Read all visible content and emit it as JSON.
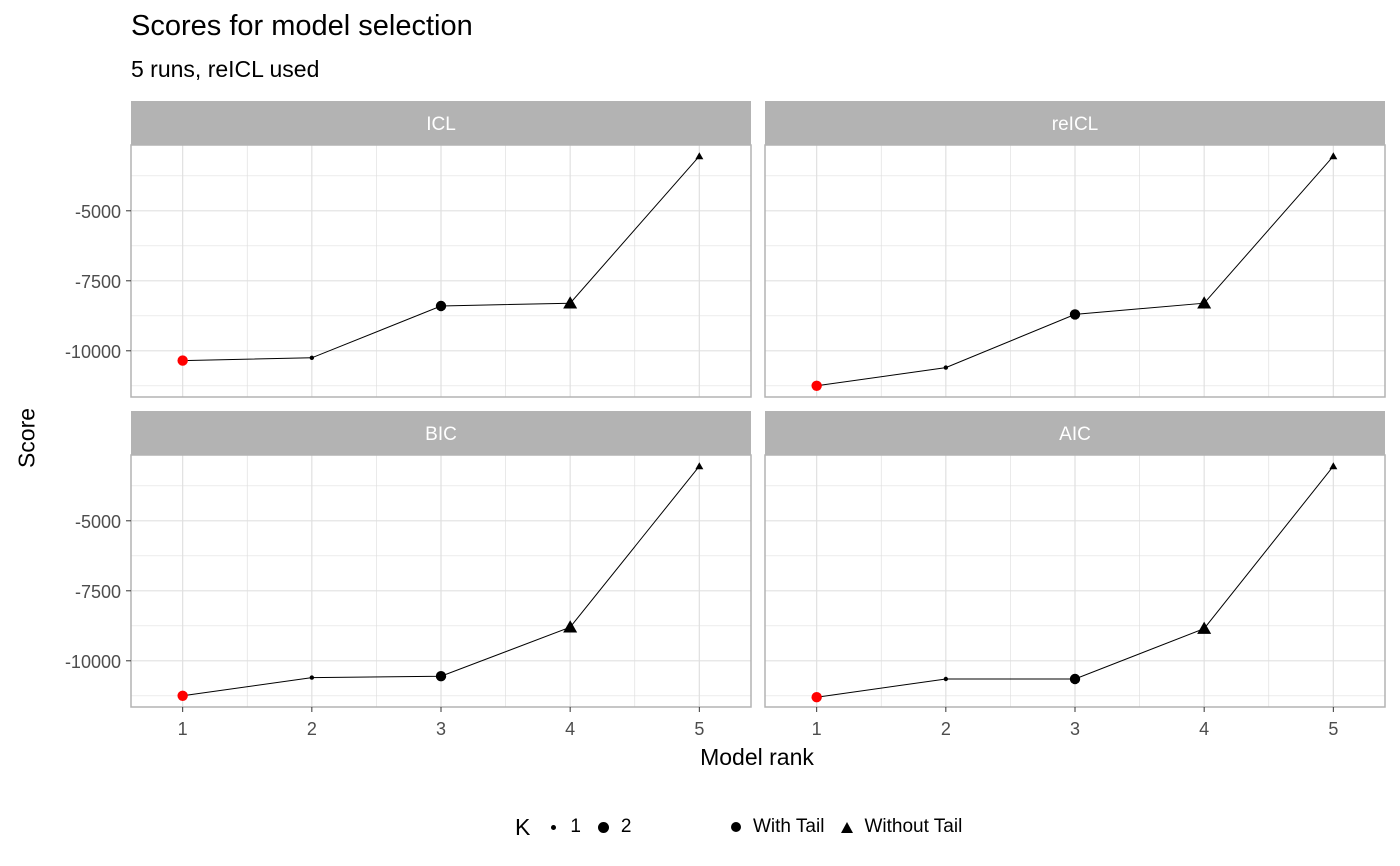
{
  "chart_data": {
    "type": "line",
    "title": "Scores for model selection",
    "subtitle": "5 runs,  reICL used",
    "xlabel": "Model rank",
    "ylabel": "Score",
    "x": [
      1,
      2,
      3,
      4,
      5
    ],
    "x_ticks": [
      "1",
      "2",
      "3",
      "4",
      "5"
    ],
    "y_ticks": [
      -5000,
      -7500,
      -10000
    ],
    "y_tick_labels": [
      "-5000",
      "-7500",
      "-10000"
    ],
    "ylim": [
      -11650,
      -2650
    ],
    "facet_layout": "2x2",
    "grid": true,
    "panels": [
      {
        "name": "ICL",
        "values": [
          -10350,
          -10250,
          -8400,
          -8300,
          -3050
        ],
        "K": [
          2,
          1,
          2,
          2,
          1
        ],
        "tail": [
          "With Tail",
          "With Tail",
          "With Tail",
          "Without Tail",
          "Without Tail"
        ],
        "selected_rank": 1
      },
      {
        "name": "reICL",
        "values": [
          -11250,
          -10600,
          -8700,
          -8300,
          -3050
        ],
        "K": [
          2,
          1,
          2,
          2,
          1
        ],
        "tail": [
          "With Tail",
          "With Tail",
          "With Tail",
          "Without Tail",
          "Without Tail"
        ],
        "selected_rank": 1
      },
      {
        "name": "BIC",
        "values": [
          -11250,
          -10600,
          -10550,
          -8800,
          -3050
        ],
        "K": [
          2,
          1,
          2,
          2,
          1
        ],
        "tail": [
          "With Tail",
          "With Tail",
          "With Tail",
          "Without Tail",
          "Without Tail"
        ],
        "selected_rank": 1
      },
      {
        "name": "AIC",
        "values": [
          -11300,
          -10650,
          -10650,
          -8850,
          -3050
        ],
        "K": [
          2,
          1,
          2,
          2,
          1
        ],
        "tail": [
          "With Tail",
          "With Tail",
          "With Tail",
          "Without Tail",
          "Without Tail"
        ],
        "selected_rank": 1
      }
    ],
    "legend": {
      "placement": "bottom",
      "size_title": "K",
      "size_entries": [
        "1",
        "2"
      ],
      "shape_entries": [
        "With Tail",
        "Without Tail"
      ]
    }
  },
  "colors": {
    "strip_fill": "#b3b3b3",
    "strip_text": "#ffffff",
    "grid": "#e0e0e0",
    "panel_border": "#b3b3b3",
    "line": "#000000",
    "highlight": "#ff0000",
    "tick_text": "#4d4d4d"
  }
}
